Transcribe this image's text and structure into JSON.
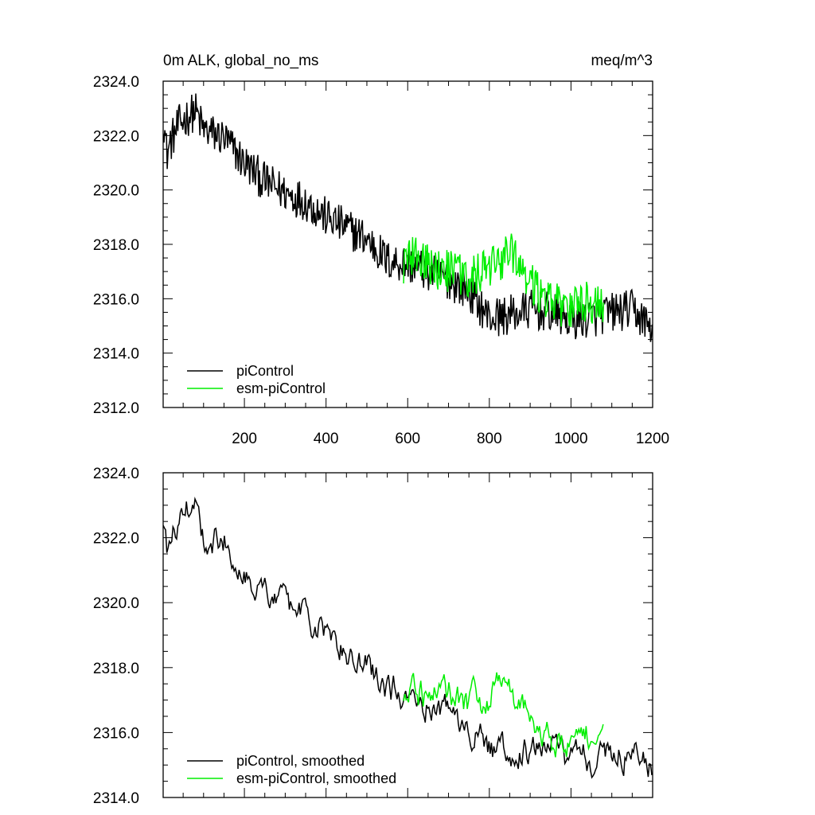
{
  "header": {
    "title_left": "0m ALK, global_no_ms",
    "title_right": "meq/m^3"
  },
  "colors": {
    "piControl": "#000000",
    "esm_piControl": "#00ee00",
    "axis": "#000000",
    "background": "#ffffff"
  },
  "chart_data": [
    {
      "type": "line",
      "title": "0m ALK, global_no_ms",
      "units": "meq/m^3",
      "xlim": [
        1,
        1200
      ],
      "ylim": [
        2312.0,
        2324.0
      ],
      "xticks": [
        200,
        400,
        600,
        800,
        1000,
        1200
      ],
      "xticklabels": [
        "200",
        "400",
        "600",
        "800",
        "1000",
        "1200"
      ],
      "yticks": [
        2312.0,
        2314.0,
        2316.0,
        2318.0,
        2320.0,
        2322.0,
        2324.0
      ],
      "yticklabels": [
        "2312.0",
        "2314.0",
        "2316.0",
        "2318.0",
        "2320.0",
        "2322.0",
        "2324.0"
      ],
      "legend": "bottom-left",
      "grid": false,
      "series": [
        {
          "name": "piControl",
          "color": "#000000",
          "x": [
            1,
            10,
            20,
            40,
            60,
            80,
            100,
            150,
            200,
            250,
            300,
            350,
            400,
            450,
            500,
            550,
            600,
            650,
            700,
            750,
            800,
            850,
            900,
            950,
            1000,
            1050,
            1100,
            1150,
            1200
          ],
          "y": [
            2322.8,
            2321.3,
            2321.8,
            2322.4,
            2322.7,
            2322.9,
            2322.2,
            2321.9,
            2321.0,
            2320.3,
            2319.9,
            2319.6,
            2319.0,
            2318.6,
            2318.2,
            2317.4,
            2317.3,
            2317.0,
            2316.7,
            2316.3,
            2315.3,
            2315.4,
            2315.6,
            2315.5,
            2315.2,
            2315.3,
            2315.5,
            2315.6,
            2314.9
          ]
        },
        {
          "name": "esm-piControl",
          "color": "#00ee00",
          "x": [
            590,
            620,
            650,
            700,
            750,
            790,
            820,
            850,
            880,
            920,
            960,
            1000,
            1040,
            1080
          ],
          "y": [
            2317.3,
            2317.6,
            2317.2,
            2317.0,
            2316.8,
            2317.0,
            2317.3,
            2317.7,
            2317.0,
            2316.3,
            2315.8,
            2315.6,
            2315.9,
            2315.7
          ]
        }
      ]
    },
    {
      "type": "line",
      "xlim": [
        1,
        1200
      ],
      "ylim": [
        2314.0,
        2324.0
      ],
      "xticks": [
        200,
        400,
        600,
        800,
        1000,
        1200
      ],
      "xticklabels": [],
      "yticks": [
        2314.0,
        2316.0,
        2318.0,
        2320.0,
        2322.0,
        2324.0
      ],
      "yticklabels": [
        "2314.0",
        "2316.0",
        "2318.0",
        "2320.0",
        "2322.0",
        "2324.0"
      ],
      "legend": "bottom-left",
      "grid": false,
      "series": [
        {
          "name": "piControl, smoothed",
          "color": "#000000",
          "x": [
            1,
            10,
            20,
            40,
            60,
            80,
            100,
            150,
            200,
            250,
            300,
            350,
            400,
            450,
            500,
            550,
            600,
            650,
            700,
            750,
            800,
            850,
            900,
            950,
            1000,
            1050,
            1100,
            1150,
            1200
          ],
          "y": [
            2322.7,
            2321.5,
            2321.9,
            2322.6,
            2322.9,
            2323.1,
            2322.0,
            2322.0,
            2321.1,
            2320.3,
            2319.9,
            2319.6,
            2319.0,
            2318.5,
            2318.0,
            2317.3,
            2317.3,
            2317.0,
            2316.6,
            2316.3,
            2315.4,
            2315.4,
            2315.5,
            2315.5,
            2315.2,
            2315.2,
            2315.4,
            2315.5,
            2315.1
          ]
        },
        {
          "name": "esm-piControl, smoothed",
          "color": "#00ee00",
          "x": [
            590,
            620,
            650,
            700,
            750,
            790,
            820,
            850,
            880,
            920,
            960,
            1000,
            1040,
            1080
          ],
          "y": [
            2317.3,
            2317.5,
            2317.1,
            2317.1,
            2316.8,
            2317.0,
            2317.3,
            2317.5,
            2316.8,
            2316.2,
            2315.8,
            2315.6,
            2315.9,
            2315.6
          ]
        }
      ]
    }
  ]
}
